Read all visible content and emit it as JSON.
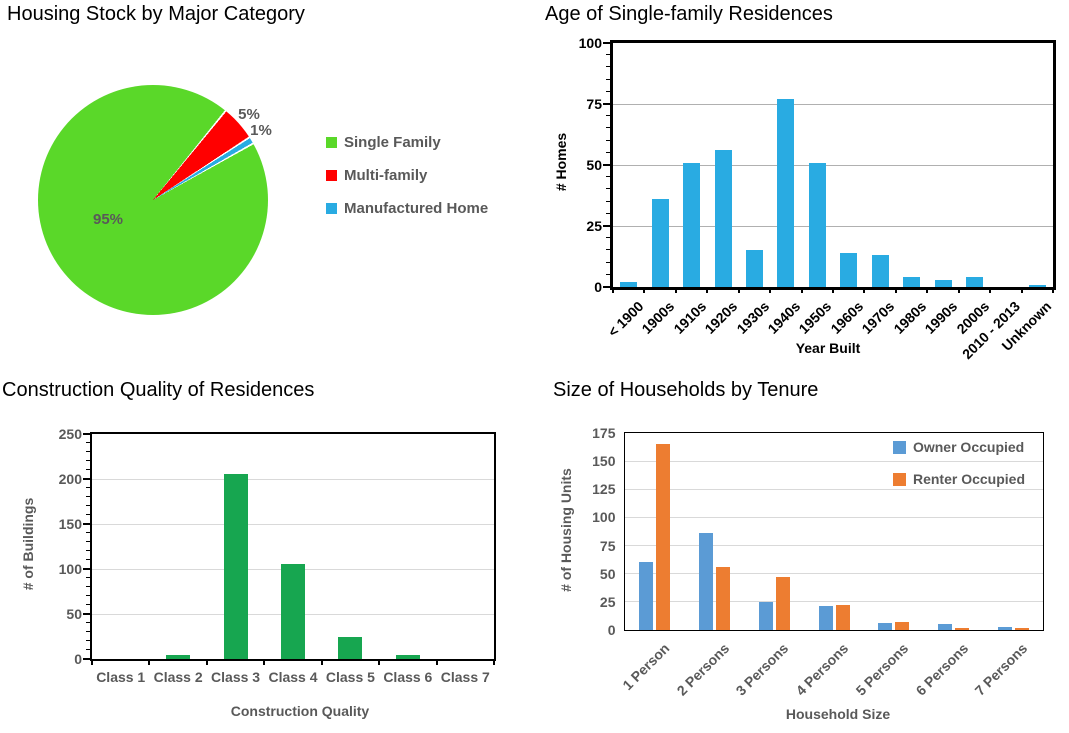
{
  "palette": {
    "gray_text": "#595959",
    "axis_black": "#000000",
    "grid_medium": "#B0B0B0",
    "grid_light": "#D9D9D9",
    "background": "#FFFFFF"
  },
  "chart_data": [
    {
      "type": "pie",
      "title": "Housing Stock by Major Category",
      "labels": [
        "Single Family",
        "Multi-family",
        "Manufactured Home"
      ],
      "values": [
        95,
        5,
        1
      ],
      "pct_labels": [
        "95%",
        "5%",
        "1%"
      ],
      "colors": [
        "#5AD829",
        "#FF0000",
        "#29ABE2"
      ],
      "legend_position": "right",
      "start_angle_deg": 61
    },
    {
      "type": "bar",
      "title": "Age of Single-family Residences",
      "xlabel": "Year Built",
      "ylabel": "# Homes",
      "categories": [
        "< 1900",
        "1900s",
        "1910s",
        "1920s",
        "1930s",
        "1940s",
        "1950s",
        "1960s",
        "1970s",
        "1980s",
        "1990s",
        "2000s",
        "2010 - 2013",
        "Unknown"
      ],
      "values": [
        2,
        36,
        51,
        56,
        15,
        77,
        51,
        14,
        13,
        4,
        3,
        4,
        0,
        1
      ],
      "bar_color": "#29ABE2",
      "ylim": [
        0,
        100
      ],
      "yticks": [
        0,
        25,
        50,
        75,
        100
      ],
      "grid": true,
      "tick_label_color": "#000000",
      "x_label_rotation": 45
    },
    {
      "type": "bar",
      "title": "Construction Quality of Residences",
      "xlabel": "Construction Quality",
      "ylabel": "# of Buildings",
      "categories": [
        "Class 1",
        "Class 2",
        "Class 3",
        "Class 4",
        "Class 5",
        "Class 6",
        "Class 7"
      ],
      "values": [
        0,
        5,
        206,
        106,
        24,
        4,
        0
      ],
      "bar_color": "#17A650",
      "ylim": [
        0,
        250
      ],
      "yticks": [
        0,
        50,
        100,
        150,
        200,
        250
      ],
      "grid": true,
      "tick_label_color": "#595959",
      "x_label_rotation": 0
    },
    {
      "type": "bar",
      "title": "Size of Households by Tenure",
      "xlabel": "Household Size",
      "ylabel": "# of Housing Units",
      "categories": [
        "1 Person",
        "2 Persons",
        "3 Persons",
        "4 Persons",
        "5 Persons",
        "6 Persons",
        "7 Persons"
      ],
      "series": [
        {
          "name": "Owner Occupied",
          "color": "#5B9BD5",
          "values": [
            60,
            86,
            25,
            21,
            6,
            5,
            3
          ]
        },
        {
          "name": "Renter Occupied",
          "color": "#ED7D31",
          "values": [
            165,
            56,
            47,
            22,
            7,
            2,
            2
          ]
        }
      ],
      "ylim": [
        0,
        175
      ],
      "yticks": [
        0,
        25,
        50,
        75,
        100,
        125,
        150,
        175
      ],
      "grid": true,
      "tick_label_color": "#595959",
      "x_label_rotation": 45,
      "legend_position": "top-right"
    }
  ]
}
